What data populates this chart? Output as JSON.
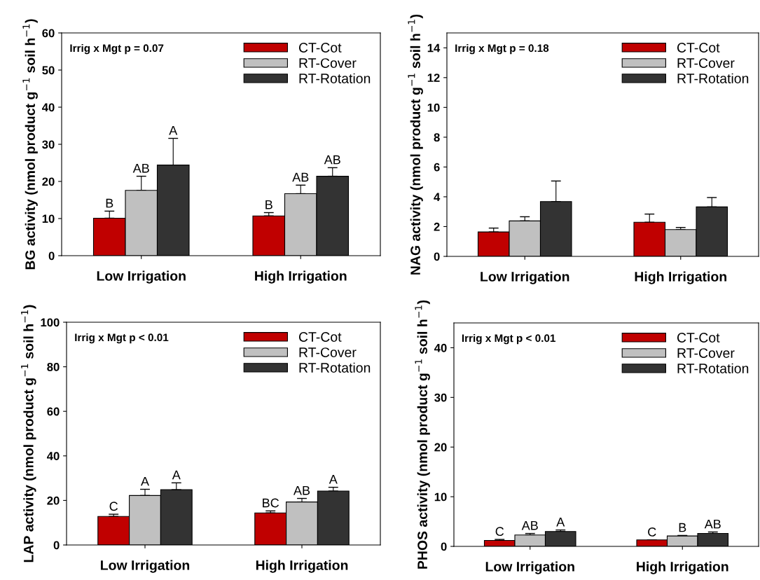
{
  "chart_data": [
    {
      "type": "bar",
      "categories": [
        "Low Irrigation",
        "High Irrigation"
      ],
      "ylabel": "BG activity (nmol product g$^{−1}$ soil h$^{−1}$)",
      "ylim": [
        0,
        60
      ],
      "yticks": [
        0,
        10,
        20,
        30,
        40,
        50,
        60
      ],
      "legend": "top right",
      "annotations": [
        "Irrig x Mgt p = 0.07"
      ],
      "series": [
        {
          "name": "CT-Cot",
          "color": "#c00000",
          "values": [
            10.1,
            10.7
          ],
          "errors": [
            [
              10.1,
              12.0
            ],
            [
              10.7,
              11.6
            ]
          ],
          "value_labels": [
            "B",
            "B"
          ]
        },
        {
          "name": "RT-Cover",
          "color": "#c0c0c0",
          "values": [
            17.6,
            16.7
          ],
          "errors": [
            [
              17.6,
              21.4
            ],
            [
              16.7,
              19.0
            ]
          ],
          "value_labels": [
            "AB",
            "AB"
          ]
        },
        {
          "name": "RT-Rotation",
          "color": "#333333",
          "values": [
            24.4,
            21.4
          ],
          "errors": [
            [
              24.4,
              31.6
            ],
            [
              21.4,
              23.7
            ]
          ],
          "value_labels": [
            "A",
            "AB"
          ]
        }
      ]
    },
    {
      "type": "bar",
      "categories": [
        "Low Irrigation",
        "High Irrigation"
      ],
      "ylabel": "NAG activity (nmol product g$^{−1}$ soil h$^{−1}$)",
      "ylim": [
        0,
        15
      ],
      "yticks": [
        0,
        2,
        4,
        6,
        8,
        10,
        12,
        14
      ],
      "legend": "top right",
      "annotations": [
        "Irrig x Mgt p = 0.18"
      ],
      "series": [
        {
          "name": "CT-Cot",
          "color": "#c00000",
          "values": [
            1.64,
            2.29
          ],
          "errors": [
            [
              1.64,
              1.9
            ],
            [
              2.29,
              2.84
            ]
          ]
        },
        {
          "name": "RT-Cover",
          "color": "#c0c0c0",
          "values": [
            2.38,
            1.8
          ],
          "errors": [
            [
              2.38,
              2.66
            ],
            [
              1.8,
              1.94
            ]
          ]
        },
        {
          "name": "RT-Rotation",
          "color": "#333333",
          "values": [
            3.68,
            3.32
          ],
          "errors": [
            [
              3.68,
              5.06
            ],
            [
              3.32,
              3.95
            ]
          ]
        }
      ]
    },
    {
      "type": "bar",
      "categories": [
        "Low Irrigation",
        "High Irrigation"
      ],
      "ylabel": "LAP activity (nmol product g$^{−1}$ soil h$^{−1}$)",
      "ylim": [
        0,
        100
      ],
      "yticks": [
        0,
        20,
        40,
        60,
        80,
        100
      ],
      "legend": "top right",
      "annotations": [
        "Irrig x Mgt p < 0.01"
      ],
      "series": [
        {
          "name": "CT-Cot",
          "color": "#c00000",
          "values": [
            12.8,
            14.4
          ],
          "errors": [
            [
              12.8,
              13.8
            ],
            [
              14.4,
              15.3
            ]
          ],
          "value_labels": [
            "C",
            "BC"
          ]
        },
        {
          "name": "RT-Cover",
          "color": "#c0c0c0",
          "values": [
            22.2,
            19.3
          ],
          "errors": [
            [
              22.2,
              25.0
            ],
            [
              19.3,
              20.9
            ]
          ],
          "value_labels": [
            "A",
            "AB"
          ]
        },
        {
          "name": "RT-Rotation",
          "color": "#333333",
          "values": [
            24.8,
            24.2
          ],
          "errors": [
            [
              24.8,
              27.9
            ],
            [
              24.2,
              25.9
            ]
          ],
          "value_labels": [
            "A",
            "A"
          ]
        }
      ]
    },
    {
      "type": "bar",
      "categories": [
        "Low Irrigation",
        "High Irrigation"
      ],
      "ylabel": "PHOS activity (nmol product g$^{−1}$ soil h$^{−1}$)",
      "ylim": [
        0,
        45
      ],
      "yticks": [
        0,
        10,
        20,
        30,
        40
      ],
      "legend": "top right",
      "annotations": [
        "Irrig x Mgt p < 0.01"
      ],
      "series": [
        {
          "name": "CT-Cot",
          "color": "#c00000",
          "values": [
            1.2,
            1.3
          ],
          "errors": [
            [
              1.2,
              1.4
            ],
            [
              1.3,
              1.3
            ]
          ],
          "value_labels": [
            "C",
            "C"
          ]
        },
        {
          "name": "RT-Cover",
          "color": "#c0c0c0",
          "values": [
            2.3,
            2.1
          ],
          "errors": [
            [
              2.3,
              2.6
            ],
            [
              2.1,
              2.2
            ]
          ],
          "value_labels": [
            "AB",
            "B"
          ]
        },
        {
          "name": "RT-Rotation",
          "color": "#333333",
          "values": [
            3.0,
            2.6
          ],
          "errors": [
            [
              3.0,
              3.3
            ],
            [
              2.6,
              2.9
            ]
          ],
          "value_labels": [
            "A",
            "AB"
          ]
        }
      ]
    }
  ]
}
